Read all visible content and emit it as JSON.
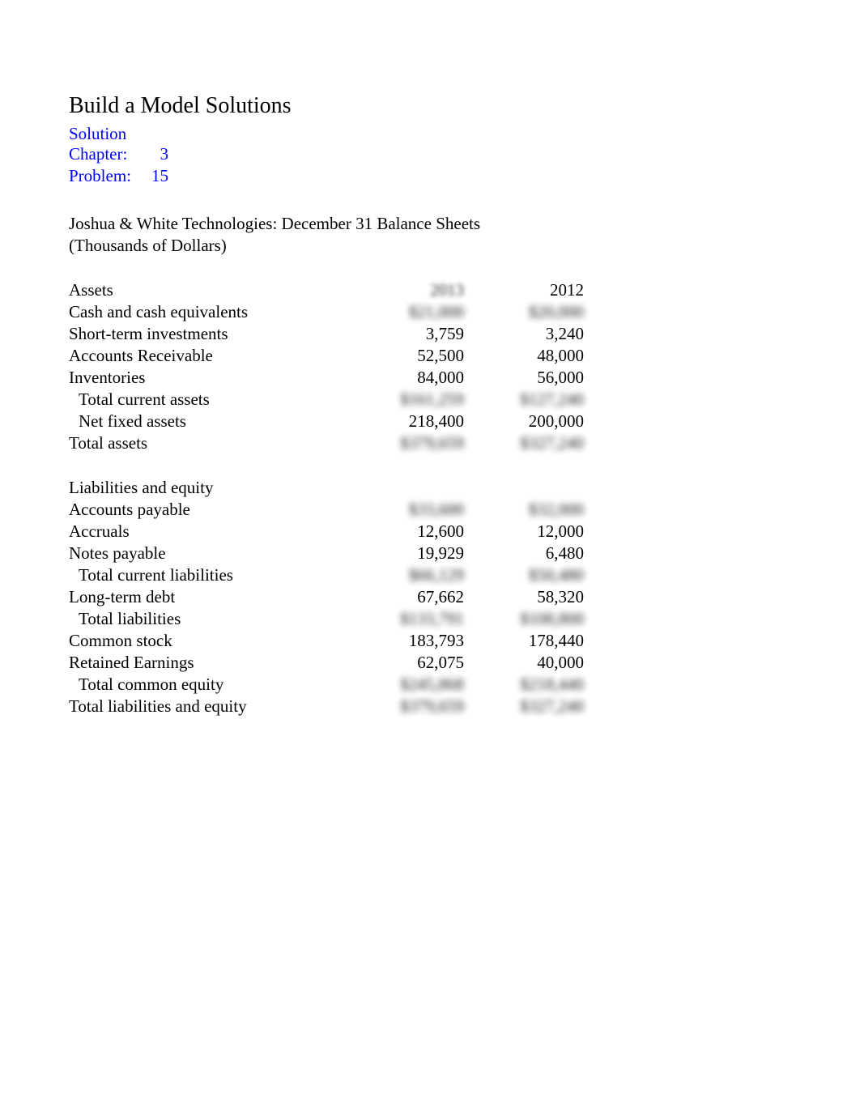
{
  "title": "Build a Model Solutions",
  "meta": {
    "solution_label": "Solution",
    "chapter_label": "Chapter:",
    "chapter_value": "3",
    "problem_label": "Problem:",
    "problem_value": "15"
  },
  "header": {
    "line1": "Joshua & White Technologies: December 31 Balance Sheets",
    "line2": "(Thousands of Dollars)"
  },
  "colors": {
    "blue": "#0000ff",
    "black": "#000000",
    "background": "#ffffff"
  },
  "columns": {
    "assets_heading": "Assets",
    "year1": "2013",
    "year2": "2012",
    "liab_heading": "Liabilities and equity"
  },
  "rows": {
    "cash": {
      "label": "Cash and cash equivalents",
      "y1": "$21,000",
      "y2": "$20,000"
    },
    "sti": {
      "label": "Short-term investments",
      "y1": "3,759",
      "y2": "3,240"
    },
    "ar": {
      "label": "Accounts Receivable",
      "y1": "52,500",
      "y2": "48,000"
    },
    "inv": {
      "label": "Inventories",
      "y1": "84,000",
      "y2": "56,000"
    },
    "tca": {
      "label": "Total current assets",
      "y1": "$161,259",
      "y2": "$127,240"
    },
    "nfa": {
      "label": "Net fixed assets",
      "y1": "218,400",
      "y2": "200,000"
    },
    "ta": {
      "label": "Total assets",
      "y1": "$379,659",
      "y2": "$327,240"
    },
    "ap": {
      "label": "Accounts payable",
      "y1": "$33,600",
      "y2": "$32,000"
    },
    "acc": {
      "label": "Accruals",
      "y1": "12,600",
      "y2": "12,000"
    },
    "np": {
      "label": "Notes payable",
      "y1": "19,929",
      "y2": "6,480"
    },
    "tcl": {
      "label": "Total current liabilities",
      "y1": "$66,129",
      "y2": "$50,480"
    },
    "ltd": {
      "label": "Long-term debt",
      "y1": "67,662",
      "y2": "58,320"
    },
    "tl": {
      "label": "Total liabilities",
      "y1": "$133,791",
      "y2": "$108,800"
    },
    "cs": {
      "label": "Common stock",
      "y1": "183,793",
      "y2": "178,440"
    },
    "re": {
      "label": "Retained Earnings",
      "y1": "62,075",
      "y2": "40,000"
    },
    "tce": {
      "label": "Total common equity",
      "y1": "$245,868",
      "y2": "$218,440"
    },
    "tle": {
      "label": "Total liabilities and equity",
      "y1": "$379,659",
      "y2": "$327,240"
    }
  },
  "typography": {
    "title_fontsize": 28,
    "body_fontsize": 21,
    "font_family": "Times New Roman"
  }
}
